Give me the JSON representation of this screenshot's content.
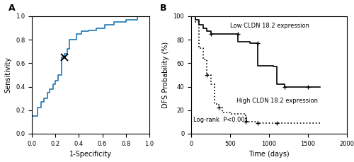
{
  "chart_data": [
    {
      "type": "line",
      "title": "A",
      "xlabel": "1-Specificity",
      "ylabel": "Sensitivity",
      "xlim": [
        0.0,
        1.0
      ],
      "ylim": [
        0.0,
        1.0
      ],
      "xticks": [
        0.0,
        0.2,
        0.4,
        0.6,
        0.8,
        1.0
      ],
      "yticks": [
        0.0,
        0.2,
        0.4,
        0.6,
        0.8,
        1.0
      ],
      "series": [
        {
          "x": [
            0,
            0,
            0.05,
            0.05,
            0.08,
            0.08,
            0.1,
            0.1,
            0.13,
            0.13,
            0.15,
            0.15,
            0.18,
            0.18,
            0.2,
            0.2,
            0.22,
            0.22,
            0.25,
            0.25,
            0.28,
            0.28,
            0.3,
            0.3,
            0.32,
            0.32,
            0.38,
            0.38,
            0.42,
            0.42,
            0.48,
            0.48,
            0.55,
            0.55,
            0.62,
            0.62,
            0.7,
            0.7,
            0.8,
            0.8,
            0.9,
            0.9,
            1.0
          ],
          "values": [
            0,
            0.15,
            0.15,
            0.22,
            0.22,
            0.27,
            0.27,
            0.3,
            0.3,
            0.35,
            0.35,
            0.38,
            0.38,
            0.42,
            0.42,
            0.45,
            0.45,
            0.5,
            0.5,
            0.65,
            0.65,
            0.68,
            0.68,
            0.72,
            0.72,
            0.8,
            0.8,
            0.85,
            0.85,
            0.87,
            0.87,
            0.88,
            0.88,
            0.9,
            0.9,
            0.93,
            0.93,
            0.95,
            0.95,
            0.97,
            0.97,
            1.0,
            1.0
          ]
        },
        {
          "type": "scatter",
          "marker": "x",
          "color": "#000000",
          "x": [
            0.28
          ],
          "values": [
            0.65
          ]
        }
      ]
    },
    {
      "type": "step",
      "title": "B",
      "xlabel": "Time (days)",
      "ylabel": "DFS Probability (%)",
      "xlim": [
        0,
        2000
      ],
      "ylim": [
        0,
        100
      ],
      "xticks": [
        0,
        500,
        1000,
        1500,
        2000
      ],
      "yticks": [
        0,
        20,
        40,
        60,
        80,
        100
      ],
      "series": [
        {
          "color": "#000000",
          "line_style": "solid",
          "x": [
            0,
            50,
            50,
            100,
            100,
            150,
            150,
            200,
            200,
            250,
            250,
            600,
            600,
            750,
            750,
            850,
            850,
            1050,
            1050,
            1100,
            1100,
            1200,
            1200,
            1500,
            1500,
            1650
          ],
          "values": [
            100,
            100,
            97,
            97,
            93,
            93,
            90,
            90,
            87,
            87,
            85,
            85,
            78,
            78,
            77,
            77,
            58,
            58,
            57,
            57,
            42,
            42,
            40,
            40,
            40,
            40
          ]
        },
        {
          "color": "#000000",
          "line_style": "dotted",
          "x": [
            0,
            50,
            50,
            100,
            100,
            150,
            150,
            200,
            200,
            250,
            250,
            300,
            300,
            350,
            350,
            400,
            400,
            500,
            500,
            700,
            700,
            800,
            800,
            850,
            850,
            1050,
            1050,
            1100,
            1100,
            1650
          ],
          "values": [
            100,
            100,
            95,
            95,
            73,
            73,
            63,
            63,
            50,
            50,
            42,
            42,
            25,
            25,
            22,
            22,
            18,
            18,
            17,
            17,
            10,
            10,
            10,
            10,
            9,
            9,
            9,
            9,
            9,
            9
          ]
        },
        {
          "type": "scatter",
          "marker": "+",
          "color": "#000000",
          "x": [
            250,
            600,
            850,
            1200,
            1500
          ],
          "values": [
            85,
            85,
            77,
            40,
            40
          ]
        },
        {
          "type": "scatter",
          "marker": "+",
          "color": "#000000",
          "x": [
            200,
            350,
            700,
            850,
            1100
          ],
          "values": [
            50,
            22,
            10,
            9,
            9
          ]
        }
      ],
      "annotations": [
        "Low CLDN 18.2 expression",
        "High CLDN 18.2 expression",
        "Log-rank  P<0.001"
      ]
    }
  ]
}
